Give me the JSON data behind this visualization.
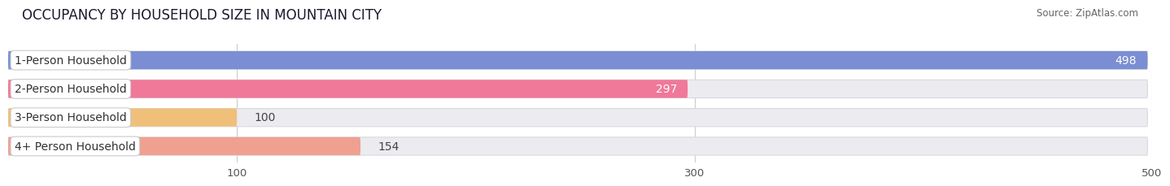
{
  "title": "OCCUPANCY BY HOUSEHOLD SIZE IN MOUNTAIN CITY",
  "source": "Source: ZipAtlas.com",
  "categories": [
    "1-Person Household",
    "2-Person Household",
    "3-Person Household",
    "4+ Person Household"
  ],
  "values": [
    498,
    297,
    100,
    154
  ],
  "bar_colors": [
    "#7b8ed4",
    "#f07898",
    "#f0c07a",
    "#f0a090"
  ],
  "value_colors": [
    "#ffffff",
    "#ffffff",
    "#444444",
    "#444444"
  ],
  "xlim": [
    0,
    530
  ],
  "data_max": 498,
  "xticks": [
    100,
    300,
    500
  ],
  "background_color": "#ffffff",
  "bar_background_color": "#ebebf0",
  "title_fontsize": 12,
  "label_fontsize": 10,
  "value_fontsize": 10
}
